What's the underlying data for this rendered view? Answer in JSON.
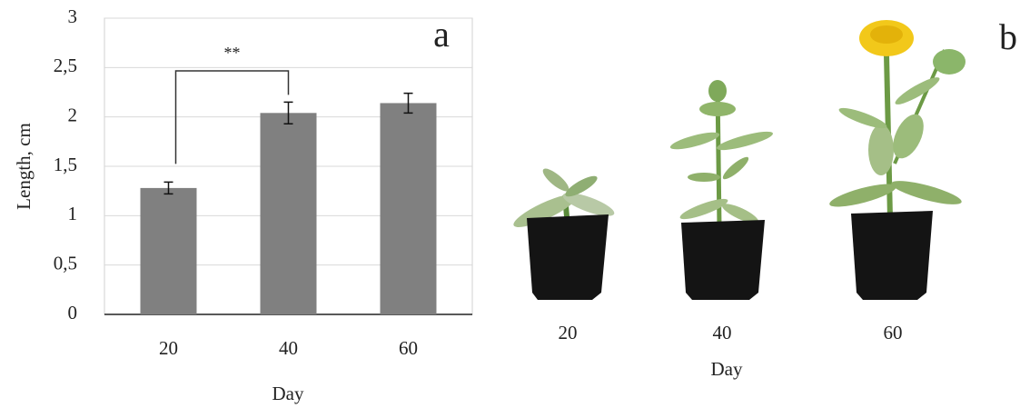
{
  "chart_data": {
    "type": "bar",
    "panel_label": "a",
    "xlabel": "Day",
    "ylabel": "Length, cm",
    "categories": [
      "20",
      "40",
      "60"
    ],
    "values": [
      1.28,
      2.04,
      2.14
    ],
    "errors": [
      0.06,
      0.11,
      0.1
    ],
    "color": "#808080",
    "ylim": [
      0,
      3
    ],
    "yticks": [
      0,
      {
        "value": 0.5,
        "label": "0,5"
      },
      1,
      {
        "value": 1.5,
        "label": "1,5"
      },
      2,
      {
        "value": 2.5,
        "label": "2,5"
      },
      3
    ],
    "grid": true,
    "annotations": [
      {
        "text": "**",
        "categories": [
          "20",
          "40"
        ]
      }
    ]
  },
  "photo_panel": {
    "panel_label": "b",
    "categories": [
      "20",
      "40",
      "60"
    ],
    "xlabel": "Day"
  }
}
